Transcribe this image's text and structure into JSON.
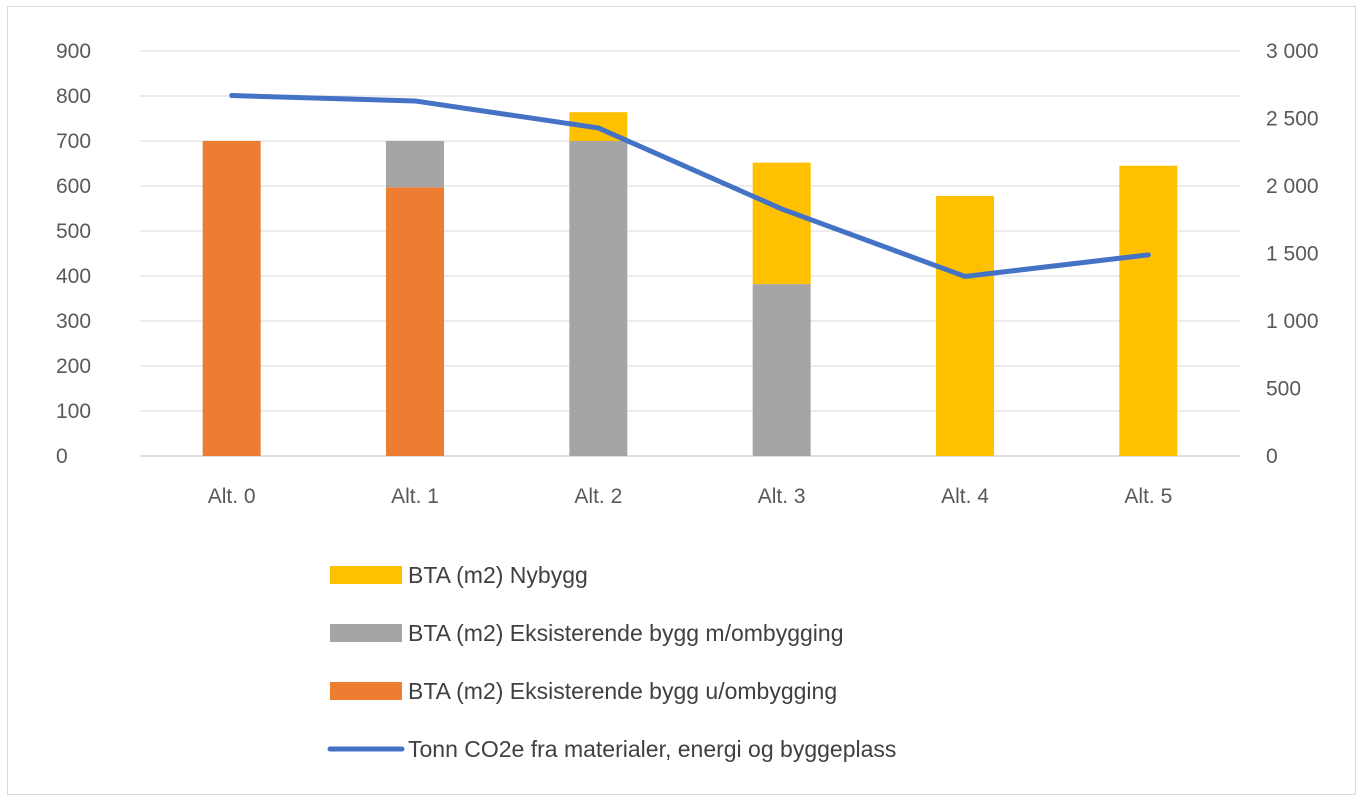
{
  "chart_data": {
    "type": "bar",
    "stacked": true,
    "categories": [
      "Alt. 0",
      "Alt. 1",
      "Alt. 2",
      "Alt. 3",
      "Alt. 4",
      "Alt. 5"
    ],
    "series": [
      {
        "name": "BTA (m2) Eksisterende bygg u/ombygging",
        "type": "bar",
        "axis": "left",
        "color": "#ED7D31",
        "values": [
          700,
          597,
          0,
          0,
          0,
          0
        ]
      },
      {
        "name": "BTA (m2) Eksisterende bygg m/ombygging",
        "type": "bar",
        "axis": "left",
        "color": "#A5A5A5",
        "values": [
          0,
          103,
          700,
          382,
          0,
          0
        ]
      },
      {
        "name": "BTA (m2) Nybygg",
        "type": "bar",
        "axis": "left",
        "color": "#FFC000",
        "values": [
          0,
          0,
          64,
          270,
          578,
          645
        ]
      },
      {
        "name": "Tonn CO2e fra materialer, energi og byggeplass",
        "type": "line",
        "axis": "right",
        "color": "#4472C4",
        "values": [
          2670,
          2630,
          2430,
          1830,
          1330,
          1490
        ]
      }
    ],
    "ylim": [
      0,
      900
    ],
    "yticks": [
      "900",
      "800",
      "700",
      "600",
      "500",
      "400",
      "300",
      "200",
      "100",
      "0"
    ],
    "y2lim": [
      0,
      3000
    ],
    "y2ticks": [
      "3 000",
      "2 500",
      "2 000",
      "1 500",
      "1 000",
      "500",
      "0"
    ],
    "legend": {
      "placement": "bottom",
      "order": [
        2,
        1,
        0,
        3
      ]
    },
    "grid": true
  }
}
